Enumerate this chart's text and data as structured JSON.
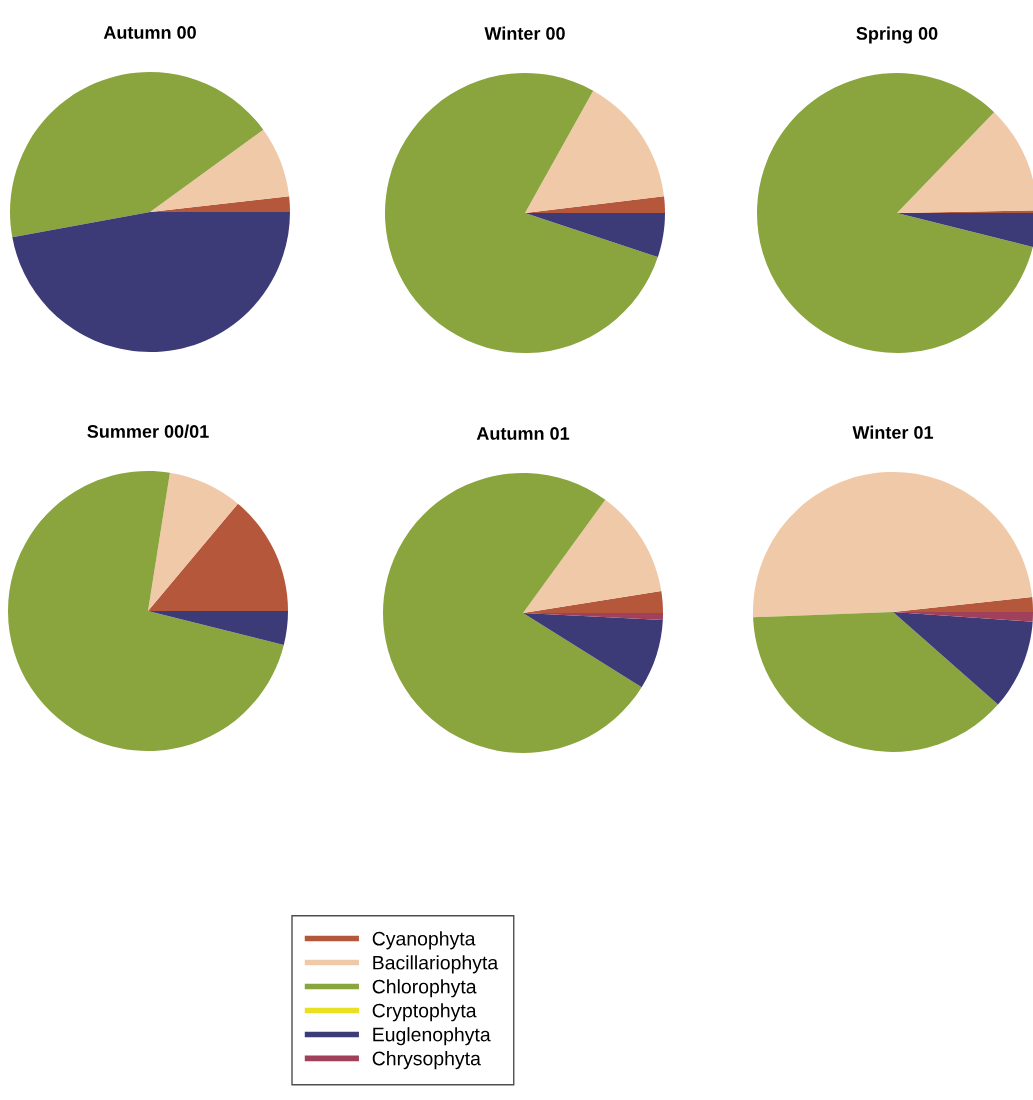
{
  "chart_data": {
    "type": "pie",
    "categories": [
      "Cyanophyta",
      "Bacillariophyta",
      "Chlorophyta",
      "Cryptophyta",
      "Euglenophyta",
      "Chrysophyta"
    ],
    "colors": [
      "#b5573a",
      "#f0c9a8",
      "#8aa53e",
      "#e8e020",
      "#3d3a78",
      "#a0405a"
    ],
    "legend": "bottom",
    "series": [
      {
        "name": "Autumn 00",
        "values": [
          1.8,
          8.2,
          42.9,
          0,
          47.1,
          0
        ]
      },
      {
        "name": "Winter 00",
        "values": [
          1.9,
          15.0,
          78.0,
          0,
          5.1,
          0
        ]
      },
      {
        "name": "Spring 00",
        "values": [
          0.3,
          12.5,
          83.3,
          0,
          3.9,
          0
        ]
      },
      {
        "name": "Summer 00/01",
        "values": [
          13.9,
          8.6,
          73.6,
          0,
          3.9,
          0
        ]
      },
      {
        "name": "Autumn 01",
        "values": [
          2.5,
          12.5,
          76.1,
          0,
          8.1,
          0.8
        ]
      },
      {
        "name": "Winter 01",
        "values": [
          1.7,
          48.9,
          37.9,
          0,
          10.4,
          1.1
        ]
      }
    ]
  }
}
